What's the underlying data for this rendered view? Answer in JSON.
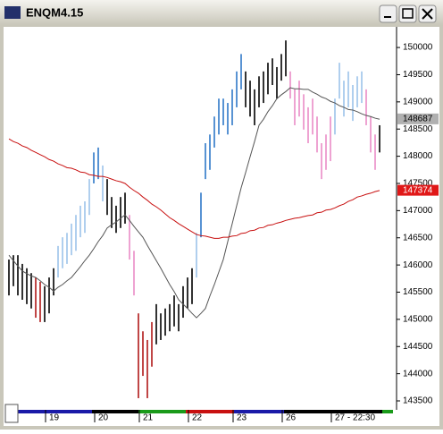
{
  "chart_data": {
    "type": "hlbar",
    "title": "ENQM4.15",
    "categories": [
      null,
      null,
      null,
      null,
      null,
      null,
      null,
      null,
      null,
      "19",
      null,
      null,
      null,
      null,
      null,
      null,
      null,
      null,
      null,
      null,
      "20",
      null,
      null,
      null,
      null,
      null,
      null,
      null,
      null,
      null,
      "21",
      null,
      null,
      null,
      null,
      null,
      null,
      null,
      null,
      null,
      null,
      "22",
      null,
      null,
      null,
      null,
      null,
      null,
      null,
      null,
      null,
      "23",
      null,
      null,
      null,
      null,
      null,
      null,
      null,
      null,
      null,
      null,
      "26",
      null,
      null,
      null,
      null,
      null,
      null,
      null,
      null,
      null,
      null,
      "27 - 22:30",
      null,
      null,
      null,
      null,
      null,
      null,
      null,
      null,
      null,
      null
    ],
    "high": [
      146100,
      146180,
      146180,
      146020,
      145940,
      145850,
      145770,
      145690,
      145610,
      145770,
      145940,
      146350,
      146510,
      146590,
      146760,
      146920,
      147090,
      147170,
      147580,
      148070,
      148160,
      147830,
      147580,
      147250,
      147090,
      147250,
      147330,
      146920,
      146260,
      145110,
      144780,
      144620,
      144950,
      145280,
      145110,
      145200,
      145280,
      145440,
      145280,
      145610,
      145770,
      145940,
      146590,
      147330,
      148240,
      148400,
      148730,
      149060,
      149060,
      148980,
      149230,
      149560,
      149880,
      149560,
      149390,
      149230,
      149470,
      149560,
      149720,
      149800,
      149640,
      149880,
      150130,
      149560,
      149230,
      149390,
      149140,
      148900,
      149060,
      148730,
      148240,
      148400,
      148730,
      149060,
      149720,
      149390,
      149560,
      149310,
      149470,
      149560,
      149230,
      148730,
      148400,
      148570
    ],
    "low": [
      145440,
      145610,
      145440,
      145360,
      145280,
      145200,
      145030,
      144950,
      144950,
      145110,
      145440,
      145770,
      145940,
      146020,
      146180,
      146260,
      146510,
      146590,
      146920,
      147500,
      147580,
      147170,
      146920,
      146680,
      146590,
      146680,
      146760,
      146100,
      145440,
      143550,
      143960,
      143550,
      144130,
      144540,
      144620,
      144700,
      144780,
      144870,
      144780,
      145030,
      145200,
      145280,
      145770,
      146510,
      147580,
      147750,
      148160,
      148400,
      148570,
      148400,
      148570,
      148900,
      149230,
      148900,
      148730,
      148570,
      148900,
      148980,
      149140,
      149310,
      149060,
      149390,
      149470,
      149060,
      148570,
      148730,
      148490,
      148240,
      148400,
      148070,
      147580,
      147750,
      147910,
      148400,
      149060,
      148730,
      148900,
      148650,
      148900,
      148980,
      148570,
      148070,
      147750,
      148070
    ],
    "colors": [
      "#000000",
      "#000000",
      "#000000",
      "#000000",
      "#000000",
      "#000000",
      "#b01818",
      "#b01818",
      "#000000",
      "#000000",
      "#000000",
      "#9cc3ea",
      "#9cc3ea",
      "#9cc3ea",
      "#9cc3ea",
      "#9cc3ea",
      "#9cc3ea",
      "#9cc3ea",
      "#9cc3ea",
      "#2f78c8",
      "#2f78c8",
      "#9cc3ea",
      "#000000",
      "#000000",
      "#000000",
      "#000000",
      "#000000",
      "#e98cc6",
      "#e98cc6",
      "#b01818",
      "#b01818",
      "#b01818",
      "#b01818",
      "#000000",
      "#000000",
      "#000000",
      "#000000",
      "#000000",
      "#000000",
      "#000000",
      "#000000",
      "#000000",
      "#9cc3ea",
      "#2f78c8",
      "#2f78c8",
      "#2f78c8",
      "#2f78c8",
      "#2f78c8",
      "#2f78c8",
      "#2f78c8",
      "#2f78c8",
      "#2f78c8",
      "#2f78c8",
      "#000000",
      "#000000",
      "#000000",
      "#000000",
      "#000000",
      "#000000",
      "#000000",
      "#000000",
      "#000000",
      "#000000",
      "#e98cc6",
      "#e98cc6",
      "#e98cc6",
      "#e98cc6",
      "#e98cc6",
      "#e98cc6",
      "#e98cc6",
      "#e98cc6",
      "#e98cc6",
      "#e98cc6",
      "#9cc3ea",
      "#9cc3ea",
      "#9cc3ea",
      "#9cc3ea",
      "#9cc3ea",
      "#9cc3ea",
      "#9cc3ea",
      "#e98cc6",
      "#e98cc6",
      "#e98cc6",
      "#000000"
    ],
    "overlays": [
      {
        "color": "#555555",
        "values": [
          146180,
          146080,
          145980,
          145890,
          145840,
          145800,
          145770,
          145710,
          145640,
          145590,
          145520,
          145590,
          145640,
          145710,
          145770,
          145870,
          145970,
          146080,
          146180,
          146300,
          146430,
          146540,
          146680,
          146740,
          146790,
          146860,
          146920,
          146820,
          146710,
          146610,
          146510,
          146360,
          146220,
          146080,
          145940,
          145790,
          145640,
          145510,
          145360,
          145280,
          145200,
          145110,
          145030,
          145110,
          145200,
          145430,
          145640,
          145870,
          146100,
          146430,
          146760,
          147090,
          147420,
          147700,
          147990,
          148270,
          148570,
          148680,
          148820,
          148930,
          149060,
          149130,
          149190,
          149260,
          149240,
          149240,
          149230,
          149230,
          149180,
          149140,
          149090,
          149060,
          149010,
          148980,
          148930,
          148900,
          148860,
          148850,
          148820,
          148780,
          148750,
          148730,
          148700,
          148680
        ]
      },
      {
        "color": "#c81010",
        "values": [
          148320,
          148270,
          148240,
          148190,
          148160,
          148110,
          148070,
          148030,
          147990,
          147940,
          147910,
          147860,
          147830,
          147790,
          147780,
          147750,
          147710,
          147700,
          147660,
          147650,
          147630,
          147630,
          147610,
          147580,
          147550,
          147530,
          147500,
          147430,
          147370,
          147320,
          147250,
          147190,
          147120,
          147070,
          147010,
          146940,
          146870,
          146820,
          146760,
          146710,
          146660,
          146610,
          146560,
          146540,
          146530,
          146510,
          146490,
          146490,
          146510,
          146510,
          146530,
          146540,
          146580,
          146590,
          146630,
          146640,
          146680,
          146690,
          146730,
          146740,
          146770,
          146790,
          146820,
          146840,
          146860,
          146870,
          146890,
          146910,
          146920,
          146960,
          146970,
          147010,
          147020,
          147050,
          147090,
          147120,
          147170,
          147200,
          147250,
          147270,
          147300,
          147320,
          147350,
          147370
        ]
      }
    ],
    "last_values": [
      148687,
      147374
    ],
    "last_colors": [
      "#b0b0b0",
      "#e01818"
    ],
    "ylim": [
      143385,
      150380
    ],
    "yticks": [
      143500,
      144000,
      144500,
      145000,
      145500,
      146000,
      146500,
      147000,
      147500,
      148000,
      148500,
      149000,
      149500,
      150000
    ]
  }
}
